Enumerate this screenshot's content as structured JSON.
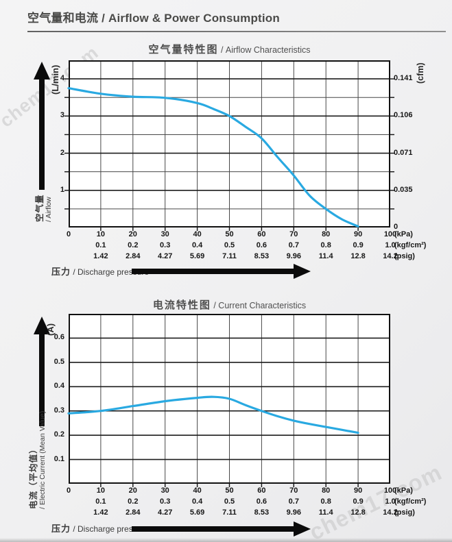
{
  "page": {
    "title_zh": "空气量和电流",
    "title_en": " / Airflow & Power Consumption",
    "watermark": "chem17.com"
  },
  "colors": {
    "curve": "#29a9e1",
    "grid_minor": "#474747",
    "grid_major": "#1c1c1c",
    "plot_border": "#111111",
    "plot_bg": "#ffffff",
    "heading_text": "#4a4a48",
    "tick_text": "#161616",
    "arrow_black": "#0b0b0b",
    "page_bg": "#f0f0f1"
  },
  "x_axis": {
    "pressure_zh": "压力",
    "pressure_en": " / Discharge pressure",
    "rows": [
      {
        "start_tick": 0,
        "unit": "(kPa)",
        "values": [
          "0",
          "10",
          "20",
          "30",
          "40",
          "50",
          "60",
          "70",
          "80",
          "90",
          "100"
        ]
      },
      {
        "start_tick": 1,
        "unit": "(kgf/cm²)",
        "values": [
          "0.1",
          "0.2",
          "0.3",
          "0.4",
          "0.5",
          "0.6",
          "0.7",
          "0.8",
          "0.9",
          "1.0"
        ]
      },
      {
        "start_tick": 1,
        "unit": "(psig)",
        "values": [
          "1.42",
          "2.84",
          "4.27",
          "5.69",
          "7.11",
          "8.53",
          "9.96",
          "11.4",
          "12.8",
          "14.2"
        ]
      }
    ]
  },
  "airflow_chart": {
    "title_zh": "空气量特性图",
    "title_en": " / Airflow Characteristics",
    "y_unit": "(L/min)",
    "y_ticks": [
      "4",
      "3",
      "2",
      "1"
    ],
    "right_unit": "(cfm)",
    "right_ticks": [
      "0.141",
      "0.106",
      "0.071",
      "0.035",
      "0"
    ],
    "axis_zh": "空气量",
    "axis_en": "/ Airflow"
  },
  "current_chart": {
    "title_zh": "电流特性图",
    "title_en": " / Current Characteristics",
    "y_unit": "(A)",
    "y_ticks": [
      "0.6",
      "0.5",
      "0.4",
      "0.3",
      "0.2",
      "0.1"
    ],
    "axis_zh": "电流（平均值）",
    "axis_en": "/ Electric Current (Mean Value)"
  },
  "chart_data": [
    {
      "id": "airflow",
      "type": "line",
      "title": "空气量特性图 / Airflow Characteristics",
      "xlabel": "压力 / Discharge pressure (kPa)",
      "ylabel": "空气量 / Airflow (L/min)",
      "xlim": [
        0,
        100
      ],
      "ylim": [
        0,
        4.5
      ],
      "x_grid_step": 10,
      "y_grid_step": 0.5,
      "y_major_step": 1,
      "secondary_y_unit": "cfm",
      "secondary_y_ticks": [
        0.141,
        0.106,
        0.071,
        0.035,
        0
      ],
      "grid": true,
      "legend": false,
      "points": [
        [
          0,
          3.75
        ],
        [
          10,
          3.6
        ],
        [
          20,
          3.52
        ],
        [
          30,
          3.49
        ],
        [
          40,
          3.35
        ],
        [
          45,
          3.19
        ],
        [
          50,
          3.0
        ],
        [
          55,
          2.71
        ],
        [
          60,
          2.4
        ],
        [
          65,
          1.89
        ],
        [
          70,
          1.4
        ],
        [
          75,
          0.85
        ],
        [
          80,
          0.5
        ],
        [
          85,
          0.22
        ],
        [
          90,
          0.03
        ]
      ]
    },
    {
      "id": "current",
      "type": "line",
      "title": "电流特性图 / Current Characteristics",
      "xlabel": "压力 / Discharge pressure (kPa)",
      "ylabel": "电流（平均值） / Electric Current (Mean Value) (A)",
      "xlim": [
        0,
        100
      ],
      "ylim": [
        0,
        0.7
      ],
      "x_grid_step": 10,
      "y_grid_step": 0.1,
      "y_major_step": 0.1,
      "grid": true,
      "legend": false,
      "points": [
        [
          0,
          0.29
        ],
        [
          10,
          0.3
        ],
        [
          20,
          0.32
        ],
        [
          30,
          0.34
        ],
        [
          40,
          0.354
        ],
        [
          45,
          0.358
        ],
        [
          50,
          0.35
        ],
        [
          55,
          0.324
        ],
        [
          60,
          0.3
        ],
        [
          65,
          0.278
        ],
        [
          70,
          0.26
        ],
        [
          75,
          0.246
        ],
        [
          80,
          0.234
        ],
        [
          85,
          0.222
        ],
        [
          90,
          0.21
        ]
      ]
    }
  ]
}
